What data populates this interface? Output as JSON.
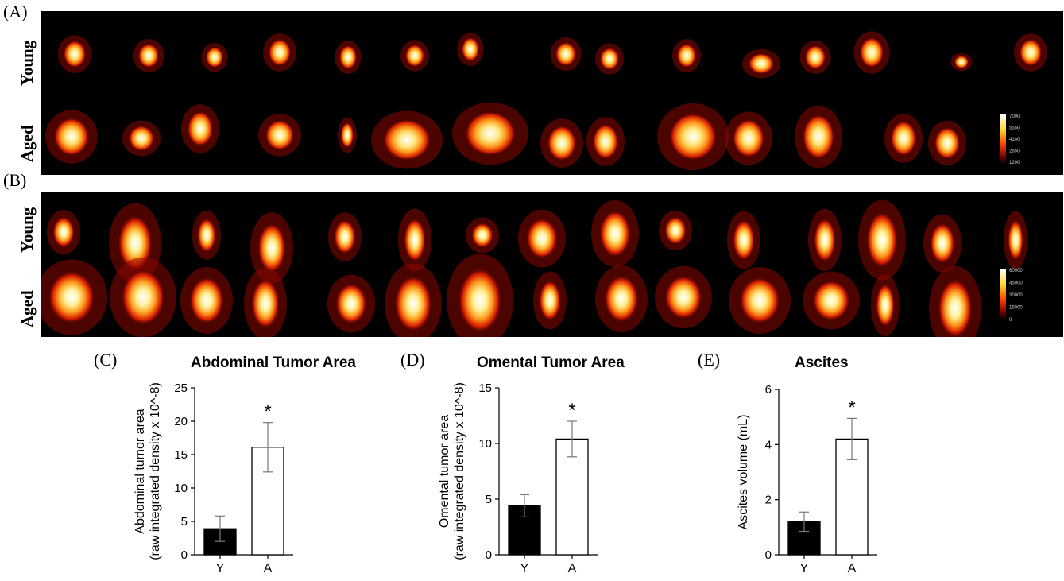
{
  "panels": {
    "a_label": "(A)",
    "b_label": "(B)",
    "c_label": "(C)",
    "d_label": "(D)",
    "e_label": "(E)"
  },
  "rows": {
    "young": "Young",
    "aged": "Aged"
  },
  "scale_a": {
    "ticks": [
      "7000",
      "5550",
      "4100",
      "2650",
      "1200"
    ]
  },
  "scale_b": {
    "ticks": [
      "60000",
      "45000",
      "30000",
      "15000",
      "0"
    ]
  },
  "chart_data": [
    {
      "type": "bar",
      "title": "Abdominal Tumor Area",
      "ylabel_line1": "Abdominal tumor area",
      "ylabel_line2": "(raw integrated density x 10^-8)",
      "categories": [
        "Y",
        "A"
      ],
      "values": [
        3.9,
        16.1
      ],
      "errors": [
        1.9,
        3.7
      ],
      "ylim": [
        0,
        25
      ],
      "yticks": [
        0,
        5,
        10,
        15,
        20,
        25
      ],
      "bar_colors": [
        "#000000",
        "#ffffff"
      ],
      "significance": [
        "",
        "*"
      ]
    },
    {
      "type": "bar",
      "title": "Omental Tumor Area",
      "ylabel_line1": "Omental tumor area",
      "ylabel_line2": "(raw integrated density x 10^-8)",
      "categories": [
        "Y",
        "A"
      ],
      "values": [
        4.4,
        10.4
      ],
      "errors": [
        1.0,
        1.6
      ],
      "ylim": [
        0,
        15
      ],
      "yticks": [
        0,
        5,
        10,
        15
      ],
      "bar_colors": [
        "#000000",
        "#ffffff"
      ],
      "significance": [
        "",
        "*"
      ]
    },
    {
      "type": "bar",
      "title": "Ascites",
      "ylabel_line1": "Ascites volume (mL)",
      "ylabel_line2": "",
      "categories": [
        "Y",
        "A"
      ],
      "values": [
        1.2,
        4.2
      ],
      "errors": [
        0.35,
        0.75
      ],
      "ylim": [
        0,
        6
      ],
      "yticks": [
        0,
        2,
        4,
        6
      ],
      "bar_colors": [
        "#000000",
        "#ffffff"
      ],
      "significance": [
        "",
        "*"
      ]
    }
  ]
}
